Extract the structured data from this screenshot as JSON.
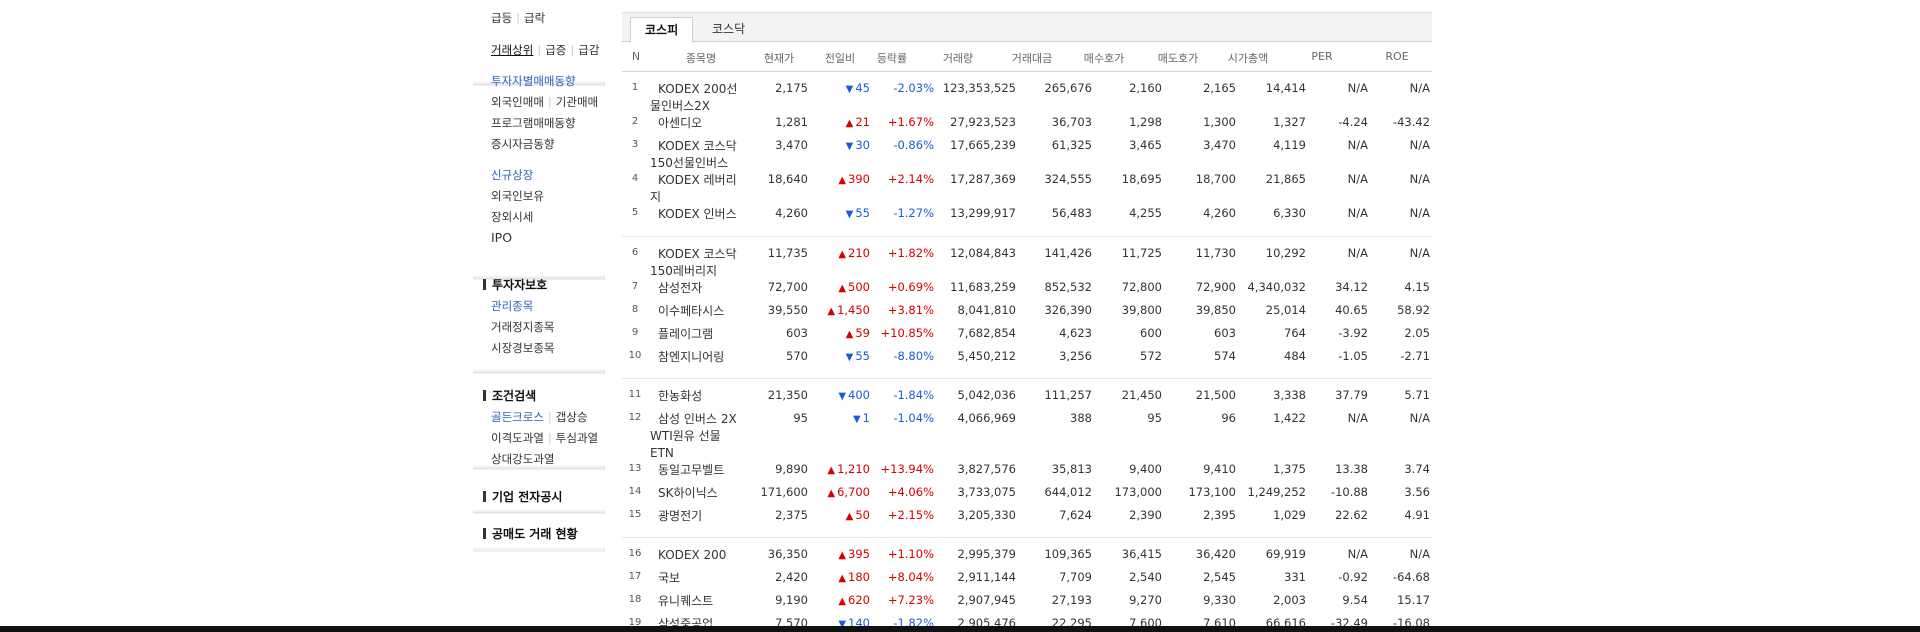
{
  "sidebar": {
    "top_links": [
      {
        "text": "급등",
        "y": 12
      },
      {
        "text": "급락",
        "y": 12
      }
    ],
    "trade_top": {
      "a": "거래상위",
      "b": "급증",
      "c": "급감"
    },
    "investor_links": [
      "투자자별매매동향",
      "외국인매매",
      "기관매매",
      "프로그램매매동향",
      "증시자금동향"
    ],
    "listing_links": [
      "신규상장",
      "외국인보유",
      "장외시세",
      "IPO"
    ],
    "protect_head": "투자자보호",
    "protect_links": [
      "관리종목",
      "거래정지종목",
      "시장경보종목"
    ],
    "cond_head": "조건검색",
    "cond_links": [
      "골든크로스",
      "갭상승",
      "이격도과열",
      "투심과열",
      "상대강도과열"
    ],
    "disclosure_head": "기업 전자공시",
    "short_head": "공매도 거래 현황"
  },
  "tabs": {
    "active": "코스피",
    "inactive": "코스닥"
  },
  "headers": [
    "N",
    "종목명",
    "현재가",
    "전일비",
    "등락률",
    "거래량",
    "거래대금",
    "매수호가",
    "매도호가",
    "시가총액",
    "PER",
    "ROE"
  ],
  "rows": [
    {
      "n": "1",
      "name": "KODEX 200선물인버스2X",
      "price": "2,175",
      "dir": "down",
      "chg": "45",
      "rate": "-2.03%",
      "vol": "123,353,525",
      "amt": "265,676",
      "bid": "2,160",
      "ask": "2,165",
      "cap": "14,414",
      "per": "N/A",
      "roe": "N/A"
    },
    {
      "n": "2",
      "name": "아센디오",
      "price": "1,281",
      "dir": "up",
      "chg": "21",
      "rate": "+1.67%",
      "vol": "27,923,523",
      "amt": "36,703",
      "bid": "1,298",
      "ask": "1,300",
      "cap": "1,327",
      "per": "-4.24",
      "roe": "-43.42"
    },
    {
      "n": "3",
      "name": "KODEX 코스닥150선물인버스",
      "price": "3,470",
      "dir": "down",
      "chg": "30",
      "rate": "-0.86%",
      "vol": "17,665,239",
      "amt": "61,325",
      "bid": "3,465",
      "ask": "3,470",
      "cap": "4,119",
      "per": "N/A",
      "roe": "N/A"
    },
    {
      "n": "4",
      "name": "KODEX 레버리지",
      "price": "18,640",
      "dir": "up",
      "chg": "390",
      "rate": "+2.14%",
      "vol": "17,287,369",
      "amt": "324,555",
      "bid": "18,695",
      "ask": "18,700",
      "cap": "21,865",
      "per": "N/A",
      "roe": "N/A"
    },
    {
      "n": "5",
      "name": "KODEX 인버스",
      "price": "4,260",
      "dir": "down",
      "chg": "55",
      "rate": "-1.27%",
      "vol": "13,299,917",
      "amt": "56,483",
      "bid": "4,255",
      "ask": "4,260",
      "cap": "6,330",
      "per": "N/A",
      "roe": "N/A"
    },
    {
      "n": "6",
      "name": "KODEX 코스닥150레버리지",
      "price": "11,735",
      "dir": "up",
      "chg": "210",
      "rate": "+1.82%",
      "vol": "12,084,843",
      "amt": "141,426",
      "bid": "11,725",
      "ask": "11,730",
      "cap": "10,292",
      "per": "N/A",
      "roe": "N/A"
    },
    {
      "n": "7",
      "name": "삼성전자",
      "price": "72,700",
      "dir": "up",
      "chg": "500",
      "rate": "+0.69%",
      "vol": "11,683,259",
      "amt": "852,532",
      "bid": "72,800",
      "ask": "72,900",
      "cap": "4,340,032",
      "per": "34.12",
      "roe": "4.15"
    },
    {
      "n": "8",
      "name": "이수페타시스",
      "price": "39,550",
      "dir": "up",
      "chg": "1,450",
      "rate": "+3.81%",
      "vol": "8,041,810",
      "amt": "326,390",
      "bid": "39,800",
      "ask": "39,850",
      "cap": "25,014",
      "per": "40.65",
      "roe": "58.92"
    },
    {
      "n": "9",
      "name": "플레이그램",
      "price": "603",
      "dir": "up",
      "chg": "59",
      "rate": "+10.85%",
      "vol": "7,682,854",
      "amt": "4,623",
      "bid": "600",
      "ask": "603",
      "cap": "764",
      "per": "-3.92",
      "roe": "2.05"
    },
    {
      "n": "10",
      "name": "참엔지니어링",
      "price": "570",
      "dir": "down",
      "chg": "55",
      "rate": "-8.80%",
      "vol": "5,450,212",
      "amt": "3,256",
      "bid": "572",
      "ask": "574",
      "cap": "484",
      "per": "-1.05",
      "roe": "-2.71"
    },
    {
      "n": "11",
      "name": "한농화성",
      "price": "21,350",
      "dir": "down",
      "chg": "400",
      "rate": "-1.84%",
      "vol": "5,042,036",
      "amt": "111,257",
      "bid": "21,450",
      "ask": "21,500",
      "cap": "3,338",
      "per": "37.79",
      "roe": "5.71"
    },
    {
      "n": "12",
      "name": "삼성 인버스 2X WTI원유 선물 ETN",
      "price": "95",
      "dir": "down",
      "chg": "1",
      "rate": "-1.04%",
      "vol": "4,066,969",
      "amt": "388",
      "bid": "95",
      "ask": "96",
      "cap": "1,422",
      "per": "N/A",
      "roe": "N/A"
    },
    {
      "n": "13",
      "name": "동일고무벨트",
      "price": "9,890",
      "dir": "up",
      "chg": "1,210",
      "rate": "+13.94%",
      "vol": "3,827,576",
      "amt": "35,813",
      "bid": "9,400",
      "ask": "9,410",
      "cap": "1,375",
      "per": "13.38",
      "roe": "3.74"
    },
    {
      "n": "14",
      "name": "SK하이닉스",
      "price": "171,600",
      "dir": "up",
      "chg": "6,700",
      "rate": "+4.06%",
      "vol": "3,733,075",
      "amt": "644,012",
      "bid": "173,000",
      "ask": "173,100",
      "cap": "1,249,252",
      "per": "-10.88",
      "roe": "3.56"
    },
    {
      "n": "15",
      "name": "광명전기",
      "price": "2,375",
      "dir": "up",
      "chg": "50",
      "rate": "+2.15%",
      "vol": "3,205,330",
      "amt": "7,624",
      "bid": "2,390",
      "ask": "2,395",
      "cap": "1,029",
      "per": "22.62",
      "roe": "4.91"
    },
    {
      "n": "16",
      "name": "KODEX 200",
      "price": "36,350",
      "dir": "up",
      "chg": "395",
      "rate": "+1.10%",
      "vol": "2,995,379",
      "amt": "109,365",
      "bid": "36,415",
      "ask": "36,420",
      "cap": "69,919",
      "per": "N/A",
      "roe": "N/A"
    },
    {
      "n": "17",
      "name": "국보",
      "price": "2,420",
      "dir": "up",
      "chg": "180",
      "rate": "+8.04%",
      "vol": "2,911,144",
      "amt": "7,709",
      "bid": "2,540",
      "ask": "2,545",
      "cap": "331",
      "per": "-0.92",
      "roe": "-64.68"
    },
    {
      "n": "18",
      "name": "유니퀘스트",
      "price": "9,190",
      "dir": "up",
      "chg": "620",
      "rate": "+7.23%",
      "vol": "2,907,945",
      "amt": "27,193",
      "bid": "9,270",
      "ask": "9,330",
      "cap": "2,003",
      "per": "9.54",
      "roe": "15.17"
    },
    {
      "n": "19",
      "name": "삼성중공업",
      "price": "7,570",
      "dir": "down",
      "chg": "140",
      "rate": "-1.82%",
      "vol": "2,905,476",
      "amt": "22,295",
      "bid": "7,600",
      "ask": "7,610",
      "cap": "66,616",
      "per": "-32.49",
      "roe": "-16.08"
    }
  ],
  "colors": {
    "up": "#d60000",
    "down": "#1a5dd6",
    "link_blue": "#2b5ebd"
  }
}
